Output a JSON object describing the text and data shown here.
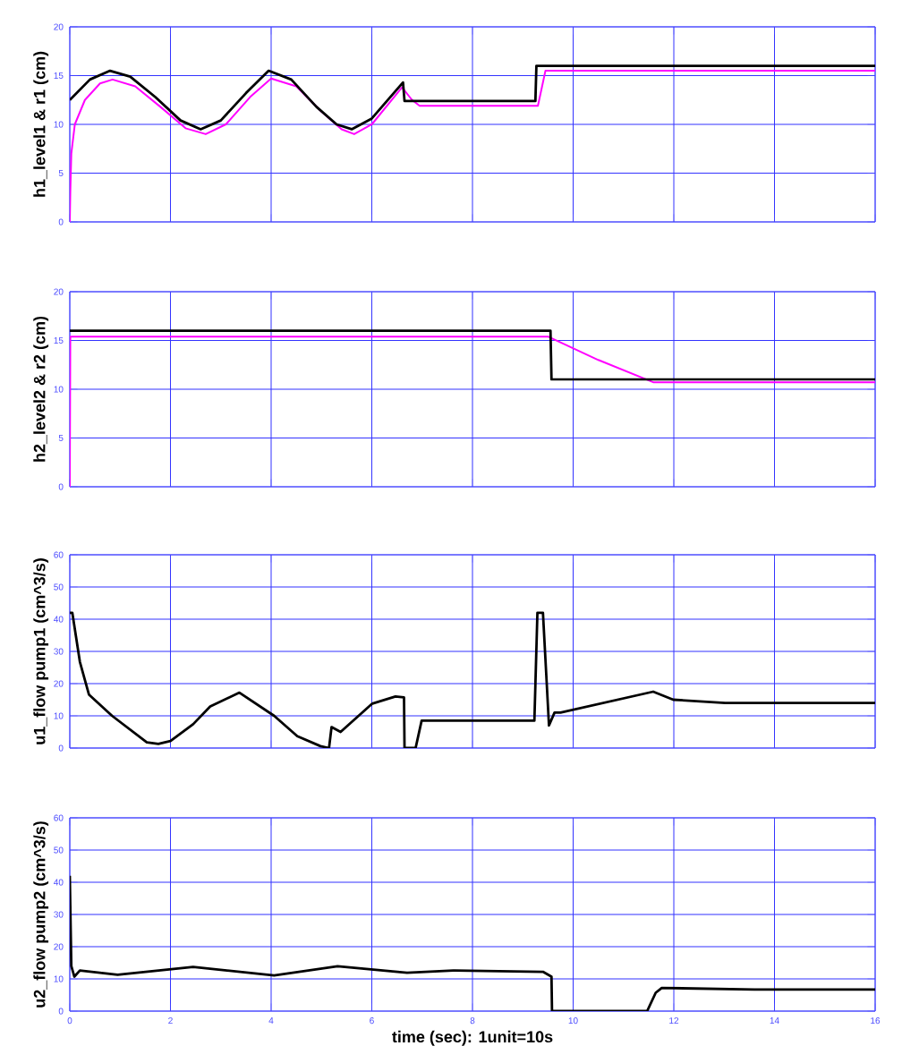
{
  "chart_data": [
    {
      "type": "line",
      "ylabel": "h1_level1 & r1 (cm)",
      "xlim": [
        0,
        16
      ],
      "ylim": [
        0,
        20
      ],
      "xticks": [
        0,
        2,
        4,
        6,
        8,
        10,
        12,
        14,
        16
      ],
      "yticks": [
        0,
        5,
        10,
        15,
        20
      ],
      "grid": true,
      "tick_labels": "y",
      "series": [
        {
          "color": "#000000",
          "x": [
            0,
            0.4,
            0.8,
            1.2,
            1.7,
            2.2,
            2.6,
            3.0,
            3.5,
            3.95,
            4.4,
            4.9,
            5.3,
            5.6,
            6.0,
            6.3,
            6.62,
            6.65,
            9.25,
            9.27,
            16
          ],
          "values": [
            12.5,
            14.6,
            15.5,
            14.9,
            12.8,
            10.4,
            9.5,
            10.4,
            13.2,
            15.5,
            14.6,
            11.8,
            10.0,
            9.5,
            10.6,
            12.4,
            14.3,
            12.4,
            12.4,
            16,
            16
          ]
        },
        {
          "color": "#ff00ff",
          "x": [
            0,
            0.01,
            0.03,
            0.1,
            0.3,
            0.6,
            0.85,
            1.3,
            1.8,
            2.3,
            2.7,
            3.1,
            3.6,
            4.0,
            4.5,
            5.0,
            5.4,
            5.65,
            6.0,
            6.3,
            6.6,
            6.8,
            6.95,
            9.3,
            9.45,
            16
          ],
          "values": [
            0,
            3,
            7,
            10,
            12.5,
            14.2,
            14.6,
            13.9,
            11.8,
            9.6,
            9.0,
            10.0,
            12.9,
            14.7,
            13.9,
            11.3,
            9.5,
            9.0,
            10.0,
            11.9,
            13.8,
            12.5,
            11.9,
            11.9,
            15.5,
            15.5
          ]
        }
      ]
    },
    {
      "type": "line",
      "ylabel": "h2_level2 & r2 (cm)",
      "xlim": [
        0,
        16
      ],
      "ylim": [
        0,
        20
      ],
      "xticks": [
        0,
        2,
        4,
        6,
        8,
        10,
        12,
        14,
        16
      ],
      "yticks": [
        0,
        5,
        10,
        15,
        20
      ],
      "grid": true,
      "tick_labels": "y",
      "series": [
        {
          "color": "#000000",
          "x": [
            0,
            9.55,
            9.57,
            16
          ],
          "values": [
            16,
            16,
            11,
            11
          ]
        },
        {
          "color": "#ff00ff",
          "x": [
            0,
            0.01,
            9.5,
            10.5,
            11.6,
            16
          ],
          "values": [
            0,
            15.4,
            15.4,
            13.0,
            10.7,
            10.7
          ]
        }
      ]
    },
    {
      "type": "line",
      "ylabel": "u1_flow pump1  (cm^3/s)",
      "xlim": [
        0,
        16
      ],
      "ylim": [
        0,
        60
      ],
      "xticks": [
        0,
        2,
        4,
        6,
        8,
        10,
        12,
        14,
        16
      ],
      "yticks": [
        0,
        10,
        20,
        30,
        40,
        50,
        60
      ],
      "grid": true,
      "tick_labels": "y",
      "series": [
        {
          "color": "#000000",
          "x": [
            0,
            0.05,
            0.2,
            0.38,
            0.84,
            1.53,
            1.76,
            2.0,
            2.45,
            2.79,
            3.37,
            3.6,
            4.06,
            4.52,
            4.98,
            5.15,
            5.2,
            5.38,
            6.01,
            6.47,
            6.64,
            6.65,
            6.87,
            6.99,
            9.23,
            9.29,
            9.4,
            9.52,
            9.63,
            9.75,
            11.59,
            11.99,
            13.02,
            16
          ],
          "values": [
            42,
            42,
            26.8,
            16.6,
            10,
            1.8,
            1.3,
            2.2,
            7.4,
            12.9,
            17.2,
            14.8,
            10,
            3.7,
            0.6,
            0,
            6.5,
            5,
            13.8,
            16,
            15.7,
            0,
            0,
            8.5,
            8.5,
            42,
            42,
            7,
            11,
            11,
            17.5,
            15,
            14,
            14
          ]
        }
      ]
    },
    {
      "type": "line",
      "xlabel": "time (sec):  1unit=10s",
      "ylabel": "u2_flow pump2  (cm^3/s)",
      "xlim": [
        0,
        16
      ],
      "ylim": [
        0,
        60
      ],
      "xticks": [
        0,
        2,
        4,
        6,
        8,
        10,
        12,
        14,
        16
      ],
      "yticks": [
        0,
        10,
        20,
        30,
        40,
        50,
        60
      ],
      "grid": true,
      "series": [
        {
          "color": "#000000",
          "x": [
            0,
            0.03,
            0.09,
            0.2,
            0.95,
            2.45,
            4.06,
            5.32,
            6.7,
            7.62,
            9.4,
            9.57,
            9.58,
            11.47,
            11.64,
            11.76,
            13.6,
            16
          ],
          "values": [
            42,
            14,
            10.7,
            12.6,
            11.3,
            13.7,
            11.1,
            13.9,
            11.9,
            12.6,
            12.2,
            10.7,
            0,
            0,
            5.7,
            7.2,
            6.7,
            6.7
          ]
        }
      ]
    }
  ]
}
